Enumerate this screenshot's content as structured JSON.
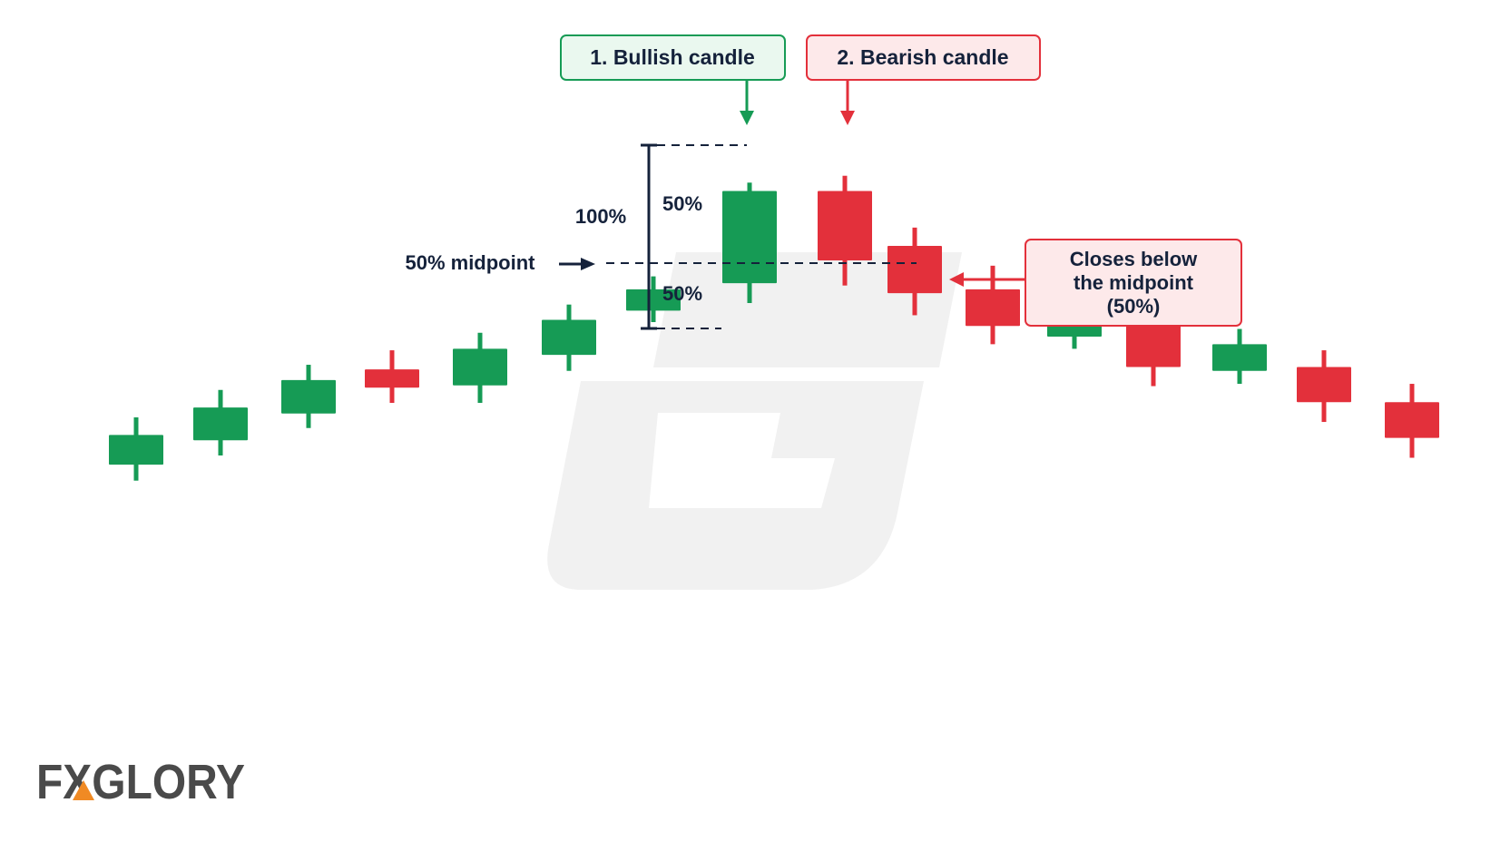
{
  "colors": {
    "bullish": "#169b55",
    "bearish": "#e3303b",
    "annotation": "#15223b",
    "bullish_box_bg": "#eaf8ef",
    "bearish_box_bg": "#fde9ea",
    "watermark": "#f1f1f1",
    "logo_gray": "#4a4a4a",
    "logo_accent": "#f08a24"
  },
  "chart_data": {
    "type": "candlestick",
    "title": "",
    "xlabel": "",
    "ylabel": "",
    "candles": [
      {
        "dir": "bull",
        "open": 43.8,
        "close": 47.7,
        "high": 50.0,
        "low": 41.7
      },
      {
        "dir": "bull",
        "open": 47.0,
        "close": 51.3,
        "high": 53.6,
        "low": 45.0
      },
      {
        "dir": "bull",
        "open": 50.5,
        "close": 54.9,
        "high": 56.9,
        "low": 48.6
      },
      {
        "dir": "bear",
        "open": 56.3,
        "close": 53.9,
        "high": 58.8,
        "low": 51.9
      },
      {
        "dir": "bull",
        "open": 54.2,
        "close": 59.0,
        "high": 61.1,
        "low": 51.9
      },
      {
        "dir": "bull",
        "open": 58.2,
        "close": 62.8,
        "high": 64.8,
        "low": 56.1
      },
      {
        "dir": "bull",
        "open": 64.0,
        "close": 66.8,
        "high": 68.5,
        "low": 62.5
      },
      {
        "dir": "bull",
        "open": 67.6,
        "close": 79.7,
        "high": 80.8,
        "low": 65.0
      },
      {
        "dir": "bear",
        "open": 79.7,
        "close": 70.6,
        "high": 81.7,
        "low": 67.3
      },
      {
        "dir": "bear",
        "open": 72.5,
        "close": 66.3,
        "high": 74.9,
        "low": 63.4
      },
      {
        "dir": "bear",
        "open": 66.8,
        "close": 62.0,
        "high": 69.9,
        "low": 59.6
      },
      {
        "dir": "bull",
        "open": 60.6,
        "close": 63.2,
        "high": 65.0,
        "low": 59.0
      },
      {
        "dir": "bear",
        "open": 62.1,
        "close": 56.6,
        "high": 64.3,
        "low": 54.1
      },
      {
        "dir": "bull",
        "open": 56.1,
        "close": 59.6,
        "high": 61.6,
        "low": 54.4
      },
      {
        "dir": "bear",
        "open": 56.6,
        "close": 52.0,
        "high": 58.8,
        "low": 49.4
      },
      {
        "dir": "bear",
        "open": 52.0,
        "close": 47.3,
        "high": 54.4,
        "low": 44.7
      }
    ]
  },
  "annotations": {
    "bullish_label": "1. Bullish candle",
    "bearish_label": "2. Bearish candle",
    "hundred_percent": "100%",
    "upper_half": "50%",
    "lower_half": "50%",
    "midpoint_label": "50% midpoint",
    "closes_below": [
      "Closes below",
      "the midpoint",
      "(50%)"
    ]
  },
  "logo": {
    "text": "FXGLORY"
  }
}
